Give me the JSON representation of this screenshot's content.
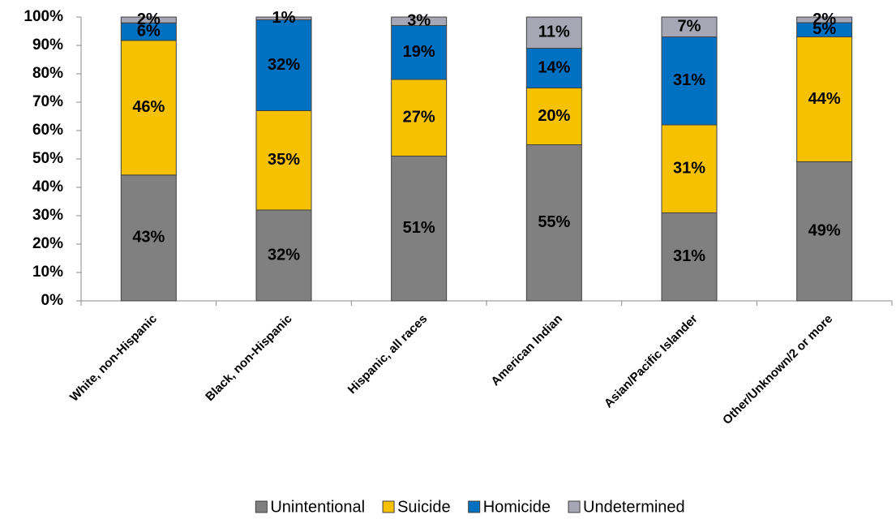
{
  "chart_data": {
    "type": "bar",
    "stacked": "percent",
    "categories": [
      "White, non-Hispanic",
      "Black, non-Hispanic",
      "Hispanic, all races",
      "American Indian",
      "Asian/Pacific Islander",
      "Other/Unknown/2 or more"
    ],
    "series": [
      {
        "name": "Unintentional",
        "color": "#808080",
        "values": [
          43,
          32,
          51,
          55,
          31,
          49
        ],
        "value_labels": [
          "43%",
          "32%",
          "51%",
          "55%",
          "31%",
          "49%"
        ]
      },
      {
        "name": "Suicide",
        "color": "#f5c100",
        "values": [
          46,
          35,
          27,
          20,
          31,
          44
        ],
        "value_labels": [
          "46%",
          "35%",
          "27%",
          "20%",
          "31%",
          "44%"
        ]
      },
      {
        "name": "Homicide",
        "color": "#0070c0",
        "values": [
          6,
          32,
          19,
          14,
          31,
          5
        ],
        "value_labels": [
          "6%",
          "32%",
          "19%",
          "14%",
          "31%",
          "5%"
        ]
      },
      {
        "name": "Undetermined",
        "color": "#a6a6b5",
        "values": [
          2,
          1,
          3,
          11,
          7,
          2
        ],
        "value_labels": [
          "2%",
          "1%",
          "3%",
          "11%",
          "7%",
          "2%"
        ]
      }
    ],
    "ylim": [
      0,
      100
    ],
    "yticks": [
      {
        "value": 0,
        "label": "0%"
      },
      {
        "value": 10,
        "label": "10%"
      },
      {
        "value": 20,
        "label": "20%"
      },
      {
        "value": 30,
        "label": "30%"
      },
      {
        "value": 40,
        "label": "40%"
      },
      {
        "value": 50,
        "label": "50%"
      },
      {
        "value": 60,
        "label": "60%"
      },
      {
        "value": 70,
        "label": "70%"
      },
      {
        "value": 80,
        "label": "80%"
      },
      {
        "value": 90,
        "label": "90%"
      },
      {
        "value": 100,
        "label": "100%"
      }
    ],
    "grid": false,
    "legend": "bottom"
  }
}
